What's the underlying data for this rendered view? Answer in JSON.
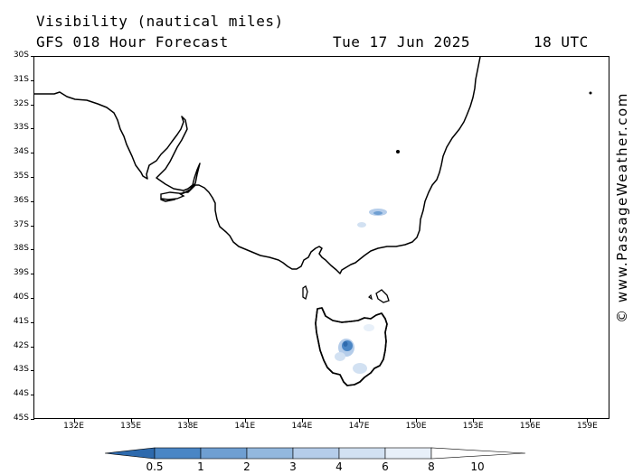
{
  "header": {
    "title": "Visibility (nautical miles)",
    "subtitle": "GFS 018 Hour Forecast",
    "date": "Tue 17 Jun 2025",
    "time": "18 UTC"
  },
  "credit": "© www.PassageWeather.com",
  "map": {
    "region": "South-eastern Australia and Tasman Sea",
    "lat_labels": [
      "30S",
      "31S",
      "32S",
      "33S",
      "34S",
      "35S",
      "36S",
      "37S",
      "38S",
      "39S",
      "40S",
      "41S",
      "42S",
      "43S",
      "44S",
      "45S"
    ],
    "lon_labels": [
      "132E",
      "135E",
      "138E",
      "141E",
      "144E",
      "147E",
      "150E",
      "153E",
      "156E",
      "159E"
    ],
    "land_color": "#ffffff",
    "coastline_color": "#000000"
  },
  "legend": {
    "unit": "nautical miles",
    "labels": [
      "0.5",
      "1",
      "2",
      "3",
      "4",
      "6",
      "8",
      "10"
    ],
    "colors": [
      "#2e6aad",
      "#4a86c5",
      "#6f9fd2",
      "#93b8de",
      "#b5cdea",
      "#d2e1f2",
      "#e8f0f9",
      "#ffffff"
    ]
  }
}
